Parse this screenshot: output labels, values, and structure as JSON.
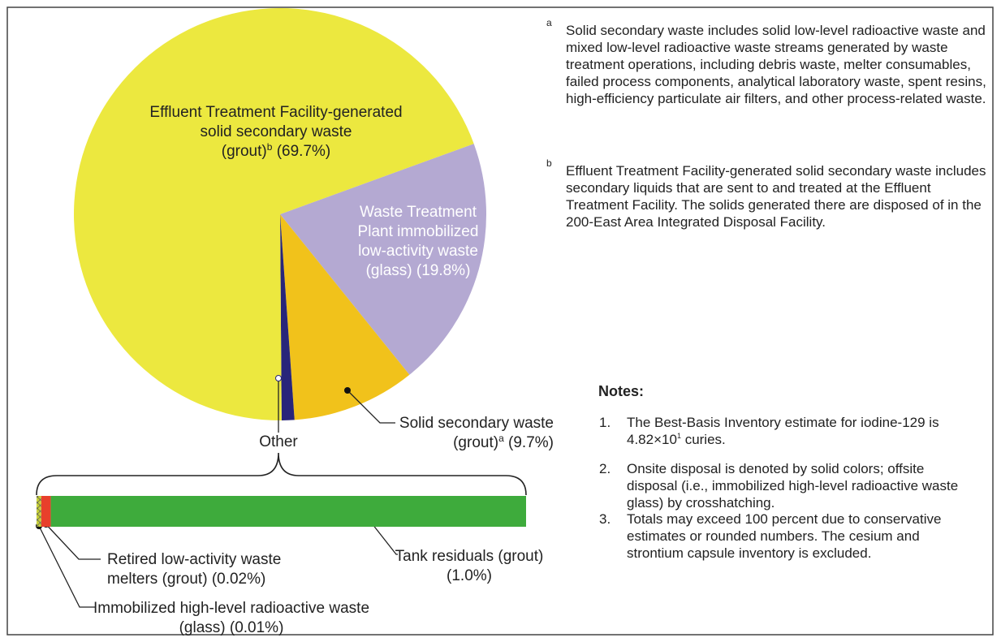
{
  "chart_data": {
    "type": "pie",
    "start_angle": 70,
    "categories": [
      [
        "Waste Treatment",
        "Plant immobilized",
        "low-activity waste",
        "(glass)"
      ],
      [
        "Solid secondary waste",
        "(grout)"
      ],
      [
        "Other"
      ],
      [
        "Effluent Treatment Facility-generated",
        "solid secondary waste",
        "(grout)"
      ]
    ],
    "footnote_marks": [
      null,
      "a",
      null,
      "b"
    ],
    "values": [
      19.8,
      9.7,
      1,
      69.7
    ],
    "value_labels": [
      "(19.8%)",
      "(9.7%)",
      null,
      "(69.7%)"
    ],
    "colors": [
      "#b4a9d2",
      "#f1c21b",
      "#28257a",
      "#ece83f"
    ],
    "breakdown": {
      "of": "Other",
      "categories": [
        [
          "Immobilized high-level radioactive waste",
          "(glass)"
        ],
        [
          "Retired low-activity waste",
          "melters (grout)"
        ],
        [
          "Tank residuals (grout)"
        ]
      ],
      "values": [
        0.01,
        0.02,
        1.0
      ],
      "value_labels": [
        "(0.01%)",
        "(0.02%)",
        "(1.0%)"
      ],
      "colors": [
        "#c9d23a",
        "#e8402b",
        "#3eab3c"
      ],
      "hatched": [
        true,
        false,
        false
      ]
    }
  },
  "footnotes": [
    {
      "mark": "a",
      "text": "Solid secondary waste includes solid low-level radioactive waste and mixed low-level radioactive waste streams generated by waste treatment operations, including debris waste, melter consumables, failed process components, analytical laboratory waste, spent resins, high-efficiency particulate air filters, and other process-related waste."
    },
    {
      "mark": "b",
      "text": "Effluent Treatment Facility-generated solid secondary waste includes secondary liquids that are sent to and treated at the Effluent Treatment Facility.  The solids generated there are disposed of in the 200-East Area Integrated Disposal Facility."
    }
  ],
  "notes": {
    "heading": "Notes:",
    "items": [
      {
        "number": "1.",
        "text": "The Best-Basis Inventory estimate for iodine-129 is 4.82×10",
        "superscript": "1",
        "text_after": "curies."
      },
      {
        "number": "2.",
        "text": "Onsite disposal is denoted by solid colors; offsite disposal (i.e., immobilized high-level radioactive waste glass) by crosshatching."
      },
      {
        "number": "3.",
        "text": "Totals may exceed 100 percent due to conservative estimates or rounded numbers. The cesium and strontium capsule inventory is excluded."
      }
    ]
  }
}
